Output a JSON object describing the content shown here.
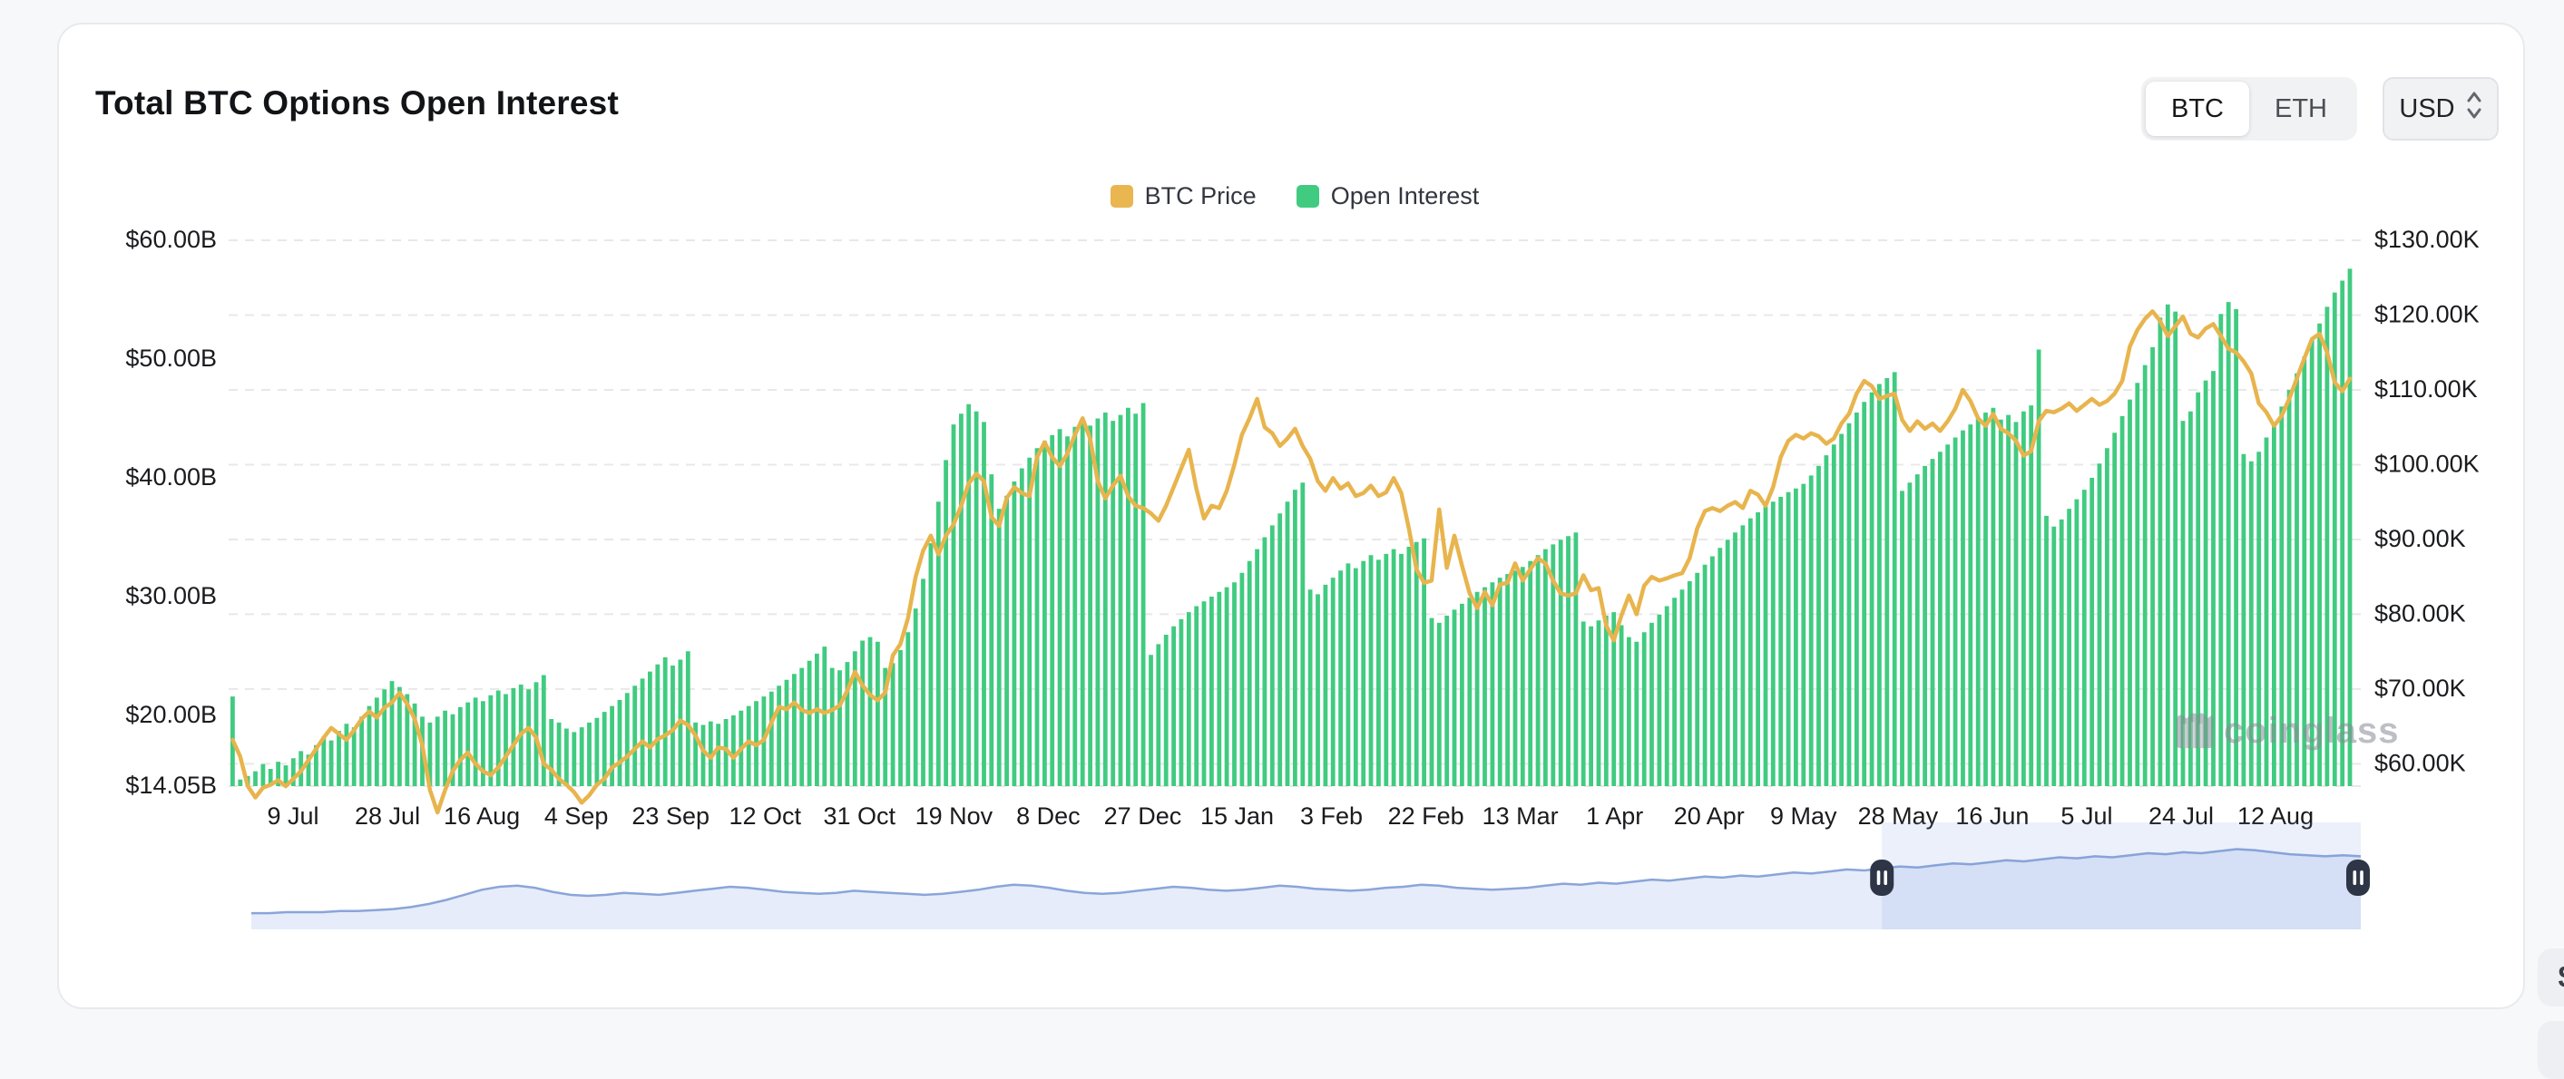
{
  "header": {
    "title": "Total BTC Options Open Interest"
  },
  "controls": {
    "asset_toggle": {
      "options": [
        "BTC",
        "ETH"
      ],
      "selected": "BTC"
    },
    "currency_select": {
      "value": "USD"
    }
  },
  "legend": [
    {
      "label": "BTC Price",
      "color": "#e9b64f"
    },
    {
      "label": "Open Interest",
      "color": "#40cb80"
    }
  ],
  "watermark": {
    "text": "coinglass"
  },
  "chart_data": {
    "type": "bar",
    "title": "Total BTC Options Open Interest",
    "left_axis": {
      "title": "Open Interest (USD)",
      "labels": [
        "$60.00B",
        "$50.00B",
        "$40.00B",
        "$30.00B",
        "$20.00B",
        "$14.05B"
      ],
      "values": [
        60,
        50,
        40,
        30,
        20,
        14.05
      ],
      "min": 14.05,
      "max": 60,
      "unit": "B"
    },
    "right_axis": {
      "title": "BTC Price (USD)",
      "labels": [
        "$130.00K",
        "$120.00K",
        "$110.00K",
        "$100.00K",
        "$90.00K",
        "$80.00K",
        "$70.00K",
        "$60.00K"
      ],
      "values": [
        130,
        120,
        110,
        100,
        90,
        80,
        70,
        60
      ],
      "min": 60,
      "max": 130,
      "unit": "K"
    },
    "x_labels": [
      "9 Jul",
      "28 Jul",
      "16 Aug",
      "4 Sep",
      "23 Sep",
      "12 Oct",
      "31 Oct",
      "19 Nov",
      "8 Dec",
      "27 Dec",
      "15 Jan",
      "3 Feb",
      "22 Feb",
      "13 Mar",
      "1 Apr",
      "20 Apr",
      "9 May",
      "28 May",
      "16 Jun",
      "5 Jul",
      "24 Jul",
      "12 Aug"
    ],
    "grid": "dashed-horizontal",
    "legend_position": "top-center",
    "colors": {
      "bar": "#40cb80",
      "line": "#e8b44d",
      "grid": "#e8e8e8",
      "axis_text": "#1a1b1e",
      "nav_line": "#8aa5d9",
      "nav_fill": "#e6ecf9",
      "nav_selection": "rgba(124,152,223,0.15)",
      "nav_handle": "#2e3546"
    },
    "series": [
      {
        "name": "Open Interest",
        "type": "bar",
        "axis": "left",
        "unit": "$B",
        "values": [
          21.6,
          14.6,
          14.9,
          15.3,
          15.9,
          15.5,
          16.1,
          15.8,
          16.4,
          17.0,
          16.7,
          17.5,
          18.2,
          17.9,
          18.7,
          19.3,
          19.0,
          19.9,
          20.8,
          21.5,
          22.2,
          22.9,
          22.4,
          21.8,
          21.0,
          19.9,
          19.4,
          19.9,
          20.4,
          20.1,
          20.7,
          21.1,
          21.5,
          21.2,
          21.7,
          22.1,
          21.8,
          22.3,
          22.6,
          22.2,
          22.8,
          23.4,
          19.7,
          19.4,
          18.9,
          18.6,
          19.0,
          19.4,
          19.8,
          20.3,
          20.8,
          21.3,
          21.9,
          22.5,
          23.1,
          23.7,
          24.3,
          24.9,
          24.2,
          24.7,
          25.4,
          19.4,
          19.2,
          19.5,
          19.3,
          19.7,
          20.0,
          20.4,
          20.8,
          21.2,
          21.6,
          22.0,
          22.5,
          23.0,
          23.5,
          24.0,
          24.6,
          25.2,
          25.8,
          24.0,
          23.8,
          24.5,
          25.4,
          26.3,
          26.6,
          26.2,
          24.0,
          24.4,
          25.5,
          27.0,
          29.0,
          31.5,
          34.5,
          38.0,
          41.5,
          44.5,
          45.4,
          46.2,
          45.6,
          44.7,
          40.3,
          37.4,
          38.5,
          39.7,
          40.8,
          41.7,
          42.5,
          43.1,
          43.6,
          44.1,
          43.5,
          44.3,
          44.9,
          44.4,
          45.0,
          45.5,
          44.8,
          45.3,
          45.9,
          45.4,
          46.3,
          25.1,
          26.0,
          26.8,
          27.5,
          28.1,
          28.7,
          29.2,
          29.6,
          30.0,
          30.4,
          30.8,
          31.2,
          32.0,
          33.0,
          34.0,
          35.0,
          36.0,
          37.0,
          38.0,
          39.0,
          39.6,
          30.6,
          30.2,
          31.0,
          31.6,
          32.2,
          32.8,
          32.4,
          33.0,
          33.5,
          33.1,
          33.6,
          34.0,
          33.6,
          34.2,
          34.6,
          34.9,
          28.2,
          27.8,
          28.4,
          28.9,
          29.4,
          29.9,
          30.4,
          30.8,
          31.2,
          31.6,
          31.9,
          32.2,
          32.5,
          33.0,
          33.5,
          34.0,
          34.4,
          34.8,
          35.1,
          35.4,
          27.9,
          27.5,
          28.0,
          28.4,
          28.7,
          27.6,
          26.6,
          26.2,
          27.0,
          27.8,
          28.5,
          29.2,
          29.9,
          30.6,
          31.3,
          32.0,
          32.7,
          33.4,
          34.1,
          34.8,
          35.4,
          36.0,
          36.6,
          37.1,
          37.6,
          38.0,
          38.4,
          38.8,
          39.1,
          39.5,
          40.2,
          41.0,
          41.9,
          42.8,
          43.7,
          44.6,
          45.5,
          46.4,
          47.2,
          47.9,
          48.4,
          48.9,
          38.9,
          39.6,
          40.3,
          41.0,
          41.6,
          42.2,
          42.8,
          43.4,
          44.0,
          44.5,
          45.0,
          45.5,
          45.9,
          44.9,
          45.3,
          44.7,
          45.6,
          46.1,
          50.8,
          36.8,
          35.9,
          36.5,
          37.4,
          38.2,
          39.0,
          40.0,
          41.2,
          42.5,
          43.8,
          45.2,
          46.6,
          48.0,
          49.5,
          51.0,
          53.5,
          54.6,
          54.0,
          44.8,
          45.6,
          47.2,
          48.2,
          49.0,
          53.8,
          54.8,
          54.2,
          42.0,
          41.4,
          42.2,
          43.4,
          44.6,
          46.0,
          47.4,
          48.8,
          50.2,
          51.6,
          53.0,
          54.4,
          55.6,
          56.6,
          57.6
        ]
      },
      {
        "name": "BTC Price",
        "type": "line",
        "axis": "right",
        "unit": "$K",
        "values": [
          63.2,
          61.0,
          57.0,
          55.5,
          56.8,
          57.2,
          57.8,
          57.0,
          58.0,
          59.0,
          60.5,
          62.0,
          63.5,
          64.8,
          64.0,
          63.2,
          64.5,
          66.0,
          67.0,
          66.2,
          67.5,
          68.2,
          69.5,
          68.0,
          66.0,
          62.5,
          56.5,
          53.5,
          56.5,
          59.0,
          60.5,
          61.5,
          60.0,
          59.0,
          58.5,
          59.5,
          61.0,
          62.5,
          64.0,
          64.8,
          63.5,
          60.0,
          59.2,
          58.0,
          57.2,
          56.2,
          54.8,
          55.8,
          57.2,
          58.0,
          59.5,
          60.2,
          61.0,
          62.0,
          63.0,
          62.2,
          63.3,
          63.8,
          64.5,
          65.8,
          65.2,
          63.8,
          61.8,
          60.8,
          62.2,
          62.0,
          60.8,
          62.0,
          63.0,
          62.5,
          63.2,
          65.5,
          67.6,
          67.3,
          68.2,
          67.2,
          66.8,
          67.3,
          66.8,
          67.2,
          67.8,
          69.8,
          72.3,
          70.5,
          69.2,
          68.5,
          69.5,
          74.5,
          76.0,
          79.5,
          85.0,
          88.5,
          90.5,
          88.0,
          90.5,
          92.0,
          94.5,
          97.5,
          98.8,
          97.8,
          93.0,
          91.8,
          95.5,
          97.0,
          96.2,
          95.8,
          101.0,
          103.0,
          101.0,
          99.8,
          101.5,
          104.0,
          106.2,
          103.5,
          97.8,
          95.5,
          97.2,
          98.5,
          95.8,
          94.5,
          94.2,
          93.5,
          92.5,
          94.5,
          97.0,
          99.5,
          102.0,
          96.8,
          92.8,
          94.5,
          94.2,
          96.5,
          100.0,
          104.0,
          106.2,
          108.8,
          105.0,
          104.2,
          102.5,
          103.5,
          104.8,
          102.5,
          100.8,
          97.8,
          96.5,
          98.2,
          96.8,
          97.5,
          95.8,
          96.2,
          97.2,
          95.8,
          96.3,
          98.2,
          96.2,
          91.5,
          86.0,
          84.2,
          84.5,
          94.0,
          86.2,
          90.5,
          86.5,
          82.8,
          80.8,
          83.0,
          81.2,
          84.0,
          84.2,
          86.8,
          84.5,
          86.0,
          87.5,
          86.8,
          84.5,
          82.8,
          82.5,
          82.8,
          85.2,
          83.2,
          83.5,
          78.5,
          76.5,
          79.8,
          82.5,
          80.0,
          83.8,
          85.0,
          84.5,
          84.8,
          85.2,
          85.5,
          87.5,
          91.5,
          93.8,
          94.2,
          93.8,
          94.5,
          95.0,
          94.2,
          96.5,
          96.0,
          94.5,
          97.0,
          101.0,
          103.2,
          104.0,
          103.5,
          104.2,
          103.8,
          102.8,
          103.5,
          105.5,
          106.8,
          109.5,
          111.2,
          110.5,
          108.8,
          109.2,
          109.5,
          106.0,
          104.5,
          105.8,
          104.8,
          105.5,
          104.5,
          105.8,
          107.5,
          110.0,
          108.5,
          106.2,
          105.2,
          106.8,
          104.8,
          104.2,
          103.2,
          101.2,
          101.8,
          105.8,
          107.2,
          107.0,
          107.5,
          108.2,
          107.2,
          108.0,
          108.8,
          108.0,
          108.5,
          109.5,
          111.2,
          115.8,
          118.0,
          119.5,
          120.5,
          119.2,
          117.2,
          118.5,
          119.8,
          117.5,
          117.0,
          118.2,
          118.8,
          117.2,
          115.5,
          115.0,
          113.8,
          112.2,
          108.2,
          107.0,
          105.2,
          106.5,
          108.8,
          111.5,
          114.2,
          116.8,
          117.5,
          115.0,
          111.0,
          109.8,
          111.5
        ]
      }
    ],
    "navigator": {
      "description": "range brush with selected window at right",
      "selection_start_frac": 0.773,
      "selection_end_frac": 1.0,
      "values": [
        16,
        16,
        17,
        17,
        17,
        18,
        18,
        19,
        20,
        22,
        25,
        29,
        34,
        39,
        42,
        43,
        41,
        37,
        34,
        33,
        34,
        36,
        35,
        34,
        36,
        38,
        40,
        42,
        41,
        39,
        37,
        36,
        35,
        36,
        38,
        37,
        36,
        35,
        34,
        35,
        37,
        39,
        42,
        44,
        43,
        41,
        38,
        36,
        35,
        36,
        38,
        40,
        42,
        41,
        39,
        38,
        39,
        41,
        43,
        42,
        40,
        39,
        38,
        39,
        41,
        42,
        44,
        43,
        41,
        40,
        39,
        40,
        41,
        43,
        45,
        44,
        46,
        45,
        47,
        49,
        48,
        50,
        52,
        51,
        53,
        52,
        54,
        56,
        55,
        57,
        59,
        58,
        60,
        62,
        61,
        63,
        65,
        64,
        66,
        68,
        67,
        69,
        71,
        70,
        72,
        71,
        73,
        75,
        74,
        76,
        75,
        77,
        79,
        78,
        76,
        74,
        73,
        72,
        73,
        72
      ]
    }
  }
}
